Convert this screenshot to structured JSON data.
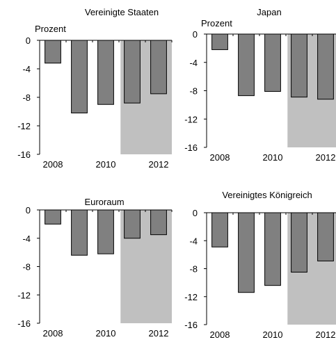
{
  "chart_data": [
    {
      "type": "bar",
      "title": "Vereinigte Staaten",
      "ylabel": "Prozent",
      "x": [
        2008,
        2009,
        2010,
        2011,
        2012
      ],
      "values": [
        -3.2,
        -10.2,
        -9.0,
        -8.8,
        -7.5
      ],
      "ylim": [
        -16,
        0
      ],
      "yticks": [
        "0",
        "-4",
        "-8",
        "-12",
        "-16"
      ],
      "xtick_labels": [
        "2008",
        "2010",
        "2012"
      ],
      "projection_years": [
        2011,
        2012
      ],
      "bar_color": "#808080",
      "projection_shade_color": "#c0c0c0"
    },
    {
      "type": "bar",
      "title": "Japan",
      "ylabel": "Prozent",
      "x": [
        2008,
        2009,
        2010,
        2011,
        2012
      ],
      "values": [
        -2.2,
        -8.7,
        -8.1,
        -8.9,
        -9.2
      ],
      "ylim": [
        -16,
        0
      ],
      "yticks": [
        "0",
        "-4",
        "-8",
        "-12",
        "-16"
      ],
      "xtick_labels": [
        "2008",
        "2010",
        "2012"
      ],
      "projection_years": [
        2011,
        2012
      ],
      "bar_color": "#808080",
      "projection_shade_color": "#c0c0c0"
    },
    {
      "type": "bar",
      "title": "Euroraum",
      "ylabel": "",
      "x": [
        2008,
        2009,
        2010,
        2011,
        2012
      ],
      "values": [
        -2.0,
        -6.4,
        -6.2,
        -4.0,
        -3.5
      ],
      "ylim": [
        -16,
        0
      ],
      "yticks": [
        "0",
        "-4",
        "-8",
        "-12",
        "-16"
      ],
      "xtick_labels": [
        "2008",
        "2010",
        "2012"
      ],
      "projection_years": [
        2011,
        2012
      ],
      "bar_color": "#808080",
      "projection_shade_color": "#c0c0c0"
    },
    {
      "type": "bar",
      "title": "Vereinigtes Königreich",
      "ylabel": "",
      "x": [
        2008,
        2009,
        2010,
        2011,
        2012
      ],
      "values": [
        -4.9,
        -11.4,
        -10.4,
        -8.5,
        -6.9
      ],
      "ylim": [
        -16,
        0
      ],
      "yticks": [
        "0",
        "-4",
        "-8",
        "-12",
        "-16"
      ],
      "xtick_labels": [
        "2008",
        "2010",
        "2012"
      ],
      "projection_years": [
        2011,
        2012
      ],
      "bar_color": "#808080",
      "projection_shade_color": "#c0c0c0"
    }
  ]
}
